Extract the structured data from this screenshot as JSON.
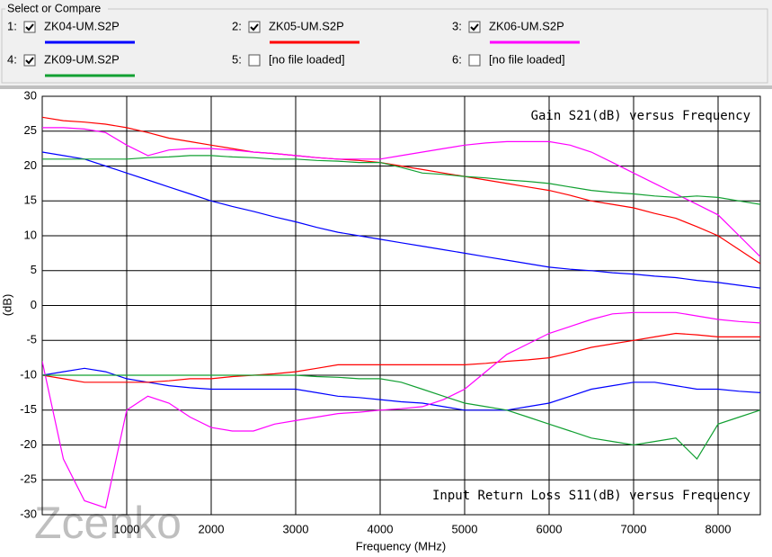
{
  "compare_panel": {
    "title": "Select or Compare",
    "slots": [
      {
        "index": "1:",
        "checked": true
      },
      {
        "index": "2:",
        "checked": true
      },
      {
        "index": "3:",
        "checked": true
      },
      {
        "index": "4:",
        "checked": true
      },
      {
        "index": "5:",
        "checked": false,
        "label": "[no file loaded]"
      },
      {
        "index": "6:",
        "checked": false,
        "label": "[no file loaded]"
      }
    ]
  },
  "chart_data": {
    "type": "line",
    "annotations": [
      "Gain S21(dB) versus Frequency",
      "Input Return Loss S11(dB) versus Frequency"
    ],
    "watermark": "Zcenko",
    "x_label": "Frequency (MHz)",
    "y_label": "(dB)",
    "x": [
      0,
      250,
      500,
      750,
      1000,
      1250,
      1500,
      1750,
      2000,
      2250,
      2500,
      2750,
      3000,
      3250,
      3500,
      3750,
      4000,
      4250,
      4500,
      4750,
      5000,
      5250,
      5500,
      5750,
      6000,
      6250,
      6500,
      6750,
      7000,
      7250,
      7500,
      7750,
      8000,
      8250,
      8500
    ],
    "series": [
      {
        "name": "ZK04-UM.S2P",
        "color": "#0000ff",
        "values": [
          22,
          21.5,
          21,
          20,
          19,
          18,
          17,
          16,
          15,
          14.2,
          13.5,
          12.7,
          12,
          11.2,
          10.5,
          10,
          9.5,
          9,
          8.5,
          8,
          7.5,
          7,
          6.5,
          6,
          5.5,
          5.2,
          5,
          4.7,
          4.5,
          4.2,
          4,
          3.6,
          3.3,
          2.9,
          2.5
        ],
        "s11_values": [
          -10,
          -9.5,
          -9,
          -9.5,
          -10.5,
          -11,
          -11.5,
          -11.8,
          -12,
          -12,
          -12,
          -12,
          -12,
          -12.5,
          -13,
          -13.2,
          -13.5,
          -13.8,
          -14,
          -14.5,
          -15,
          -15,
          -15,
          -14.5,
          -14,
          -13,
          -12,
          -11.5,
          -11,
          -11,
          -11.5,
          -12,
          -12,
          -12.3,
          -12.5
        ]
      },
      {
        "name": "ZK05-UM.S2P",
        "color": "#ff0000",
        "values": [
          27,
          26.5,
          26.3,
          26,
          25.5,
          24.8,
          24,
          23.5,
          23,
          22.5,
          22,
          21.8,
          21.5,
          21.2,
          21,
          20.8,
          20.5,
          20,
          19.5,
          19,
          18.5,
          18,
          17.5,
          17,
          16.5,
          15.8,
          15,
          14.5,
          14,
          13.2,
          12.5,
          11.3,
          10,
          8,
          6
        ],
        "s11_values": [
          -10,
          -10.5,
          -11,
          -11,
          -11,
          -11,
          -10.8,
          -10.5,
          -10.5,
          -10.2,
          -10,
          -9.8,
          -9.5,
          -9,
          -8.5,
          -8.5,
          -8.5,
          -8.5,
          -8.5,
          -8.5,
          -8.5,
          -8.3,
          -8,
          -7.8,
          -7.5,
          -6.8,
          -6,
          -5.5,
          -5,
          -4.5,
          -4,
          -4.2,
          -4.5,
          -4.5,
          -4.5
        ]
      },
      {
        "name": "ZK06-UM.S2P",
        "color": "#ff00ff",
        "values": [
          25.5,
          25.5,
          25.3,
          24.8,
          23,
          21.5,
          22.3,
          22.5,
          22.5,
          22.3,
          22,
          21.8,
          21.5,
          21.2,
          21,
          21,
          21,
          21.5,
          22,
          22.5,
          23,
          23.3,
          23.5,
          23.5,
          23.5,
          23,
          22,
          20.5,
          19,
          17.5,
          16,
          14.5,
          13,
          10,
          7
        ],
        "s11_values": [
          -8,
          -22,
          -28,
          -29,
          -15,
          -13,
          -14,
          -16,
          -17.5,
          -18,
          -18,
          -17,
          -16.5,
          -16,
          -15.5,
          -15.3,
          -15,
          -14.8,
          -14.5,
          -13.5,
          -12,
          -9.5,
          -7,
          -5.5,
          -4,
          -3,
          -2,
          -1.2,
          -1,
          -1,
          -1,
          -1.5,
          -2,
          -2.3,
          -2.5
        ]
      },
      {
        "name": "ZK09-UM.S2P",
        "color": "#12a032",
        "values": [
          21,
          21,
          21,
          21,
          21,
          21.2,
          21.3,
          21.5,
          21.5,
          21.3,
          21.2,
          21,
          21,
          20.8,
          20.7,
          20.5,
          20.5,
          19.8,
          19,
          18.8,
          18.5,
          18.3,
          18,
          17.8,
          17.5,
          17,
          16.5,
          16.2,
          16,
          15.7,
          15.5,
          15.7,
          15.5,
          15,
          14.5
        ],
        "s11_values": [
          -10,
          -10,
          -10,
          -10,
          -10,
          -10,
          -10,
          -10,
          -10,
          -10,
          -10,
          -10,
          -10,
          -10.2,
          -10.3,
          -10.5,
          -10.5,
          -11,
          -12,
          -13,
          -14,
          -14.5,
          -15,
          -16,
          -17,
          -18,
          -19,
          -19.5,
          -20,
          -19.5,
          -19,
          -22,
          -17,
          -16,
          -15
        ]
      }
    ],
    "xlim": [
      0,
      8500
    ],
    "ylim": [
      -30,
      30
    ],
    "xticks": [
      1000,
      2000,
      3000,
      4000,
      5000,
      6000,
      7000,
      8000
    ],
    "yticks": [
      -30,
      -25,
      -20,
      -15,
      -10,
      -5,
      0,
      5,
      10,
      15,
      20,
      25,
      30
    ],
    "grid": true
  }
}
